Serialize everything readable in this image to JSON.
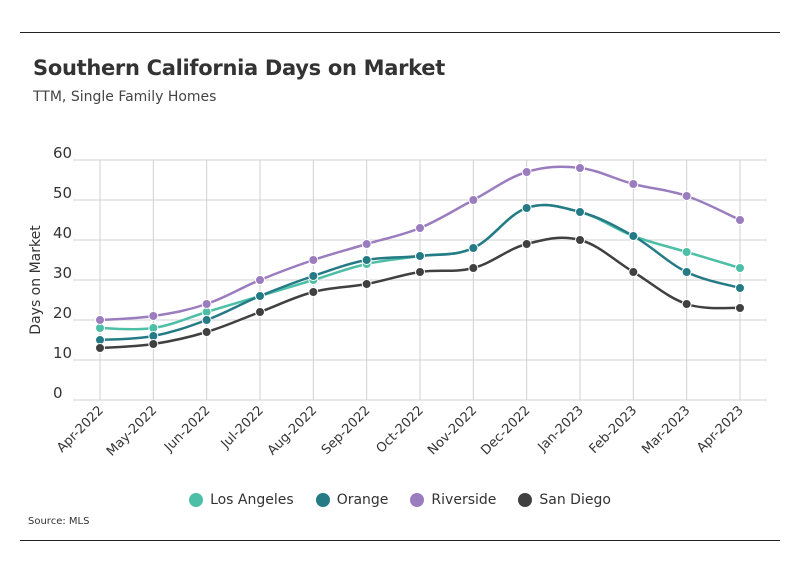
{
  "title": "Southern California Days on Market",
  "subtitle": "TTM, Single Family Homes",
  "source": "Source: MLS",
  "chart_data": {
    "type": "line",
    "title": "Southern California Days on Market",
    "subtitle": "TTM, Single Family Homes",
    "ylabel": "Days on Market",
    "xlabel": "",
    "ylim": [
      0,
      60
    ],
    "yticks": [
      0,
      10,
      20,
      30,
      40,
      50,
      60
    ],
    "grid": true,
    "legend": "bottom",
    "categories": [
      "Apr-2022",
      "May-2022",
      "Jun-2022",
      "Jul-2022",
      "Aug-2022",
      "Sep-2022",
      "Oct-2022",
      "Nov-2022",
      "Dec-2022",
      "Jan-2023",
      "Feb-2023",
      "Mar-2023",
      "Apr-2023"
    ],
    "series": [
      {
        "name": "Los Angeles",
        "color": "#4dbfa6",
        "values": [
          18,
          18,
          22,
          26,
          30,
          34,
          36,
          38,
          48,
          47,
          41,
          37,
          33
        ]
      },
      {
        "name": "Orange",
        "color": "#257b85",
        "values": [
          15,
          16,
          20,
          26,
          31,
          35,
          36,
          38,
          48,
          47,
          41,
          32,
          28
        ]
      },
      {
        "name": "Riverside",
        "color": "#9b7dbf",
        "values": [
          20,
          21,
          24,
          30,
          35,
          39,
          43,
          50,
          57,
          58,
          54,
          51,
          45
        ]
      },
      {
        "name": "San Diego",
        "color": "#404040",
        "values": [
          13,
          14,
          17,
          22,
          27,
          29,
          32,
          33,
          39,
          40,
          32,
          24,
          23
        ]
      }
    ]
  }
}
